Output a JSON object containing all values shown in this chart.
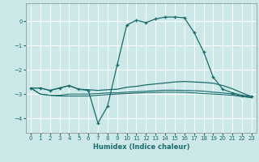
{
  "title": "",
  "xlabel": "Humidex (Indice chaleur)",
  "bg_color": "#cce8e8",
  "grid_color": "#ffffff",
  "line_color": "#1a6b6b",
  "xlim": [
    -0.5,
    23.5
  ],
  "ylim": [
    -4.6,
    0.75
  ],
  "yticks": [
    0,
    -1,
    -2,
    -3,
    -4
  ],
  "xticks": [
    0,
    1,
    2,
    3,
    4,
    5,
    6,
    7,
    8,
    9,
    10,
    11,
    12,
    13,
    14,
    15,
    16,
    17,
    18,
    19,
    20,
    21,
    22,
    23
  ],
  "line1_x": [
    0,
    1,
    2,
    3,
    4,
    5,
    6,
    7,
    8,
    9,
    10,
    11,
    12,
    13,
    14,
    15,
    16,
    17,
    18,
    19,
    20,
    21,
    22,
    23
  ],
  "line1_y": [
    -2.75,
    -2.75,
    -2.85,
    -2.75,
    -2.65,
    -2.8,
    -2.85,
    -4.2,
    -3.5,
    -1.8,
    -0.15,
    0.05,
    -0.05,
    0.1,
    0.18,
    0.18,
    0.15,
    -0.45,
    -1.25,
    -2.3,
    -2.8,
    -2.95,
    -3.05,
    -3.1
  ],
  "line2_x": [
    0,
    1,
    2,
    3,
    4,
    5,
    6,
    7,
    8,
    9,
    10,
    11,
    12,
    13,
    14,
    15,
    16,
    17,
    18,
    19,
    20,
    21,
    22,
    23
  ],
  "line2_y": [
    -2.75,
    -2.75,
    -2.85,
    -2.75,
    -2.65,
    -2.8,
    -2.82,
    -2.85,
    -2.82,
    -2.8,
    -2.72,
    -2.68,
    -2.62,
    -2.58,
    -2.54,
    -2.5,
    -2.48,
    -2.5,
    -2.52,
    -2.55,
    -2.65,
    -2.78,
    -2.95,
    -3.1
  ],
  "line3_x": [
    0,
    1,
    2,
    3,
    4,
    5,
    6,
    7,
    8,
    9,
    10,
    11,
    12,
    13,
    14,
    15,
    16,
    17,
    18,
    19,
    20,
    21,
    22,
    23
  ],
  "line3_y": [
    -2.75,
    -3.0,
    -3.05,
    -3.05,
    -3.0,
    -3.0,
    -3.0,
    -2.98,
    -2.95,
    -2.95,
    -2.92,
    -2.9,
    -2.88,
    -2.86,
    -2.84,
    -2.84,
    -2.85,
    -2.86,
    -2.88,
    -2.92,
    -2.95,
    -3.0,
    -3.08,
    -3.15
  ],
  "line4_x": [
    0,
    1,
    2,
    3,
    4,
    5,
    6,
    7,
    8,
    9,
    10,
    11,
    12,
    13,
    14,
    15,
    16,
    17,
    18,
    19,
    20,
    21,
    22,
    23
  ],
  "line4_y": [
    -2.75,
    -3.0,
    -3.05,
    -3.08,
    -3.08,
    -3.08,
    -3.08,
    -3.05,
    -3.02,
    -3.0,
    -2.98,
    -2.96,
    -2.94,
    -2.93,
    -2.92,
    -2.92,
    -2.93,
    -2.95,
    -2.98,
    -3.0,
    -3.02,
    -3.05,
    -3.1,
    -3.15
  ]
}
